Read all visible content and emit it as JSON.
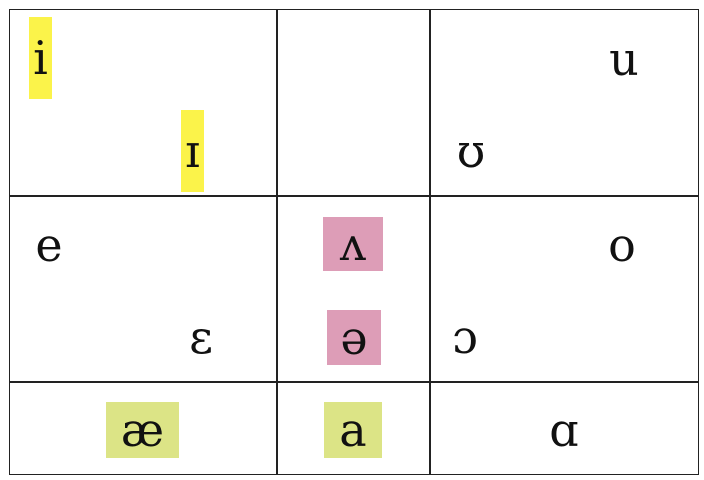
{
  "vowels": {
    "i": "i",
    "small_cap_i": "ɪ",
    "u": "u",
    "upsilon": "ʊ",
    "e": "e",
    "wedge": "ʌ",
    "o": "o",
    "epsilon": "ɛ",
    "schwa": "ə",
    "open_o": "ɔ",
    "ash": "æ",
    "a": "a",
    "script_a": "ɑ"
  },
  "colors": {
    "yellow": "#fbf34a",
    "pink": "#dd9db7",
    "green": "#dce486",
    "grid": "#222222"
  }
}
